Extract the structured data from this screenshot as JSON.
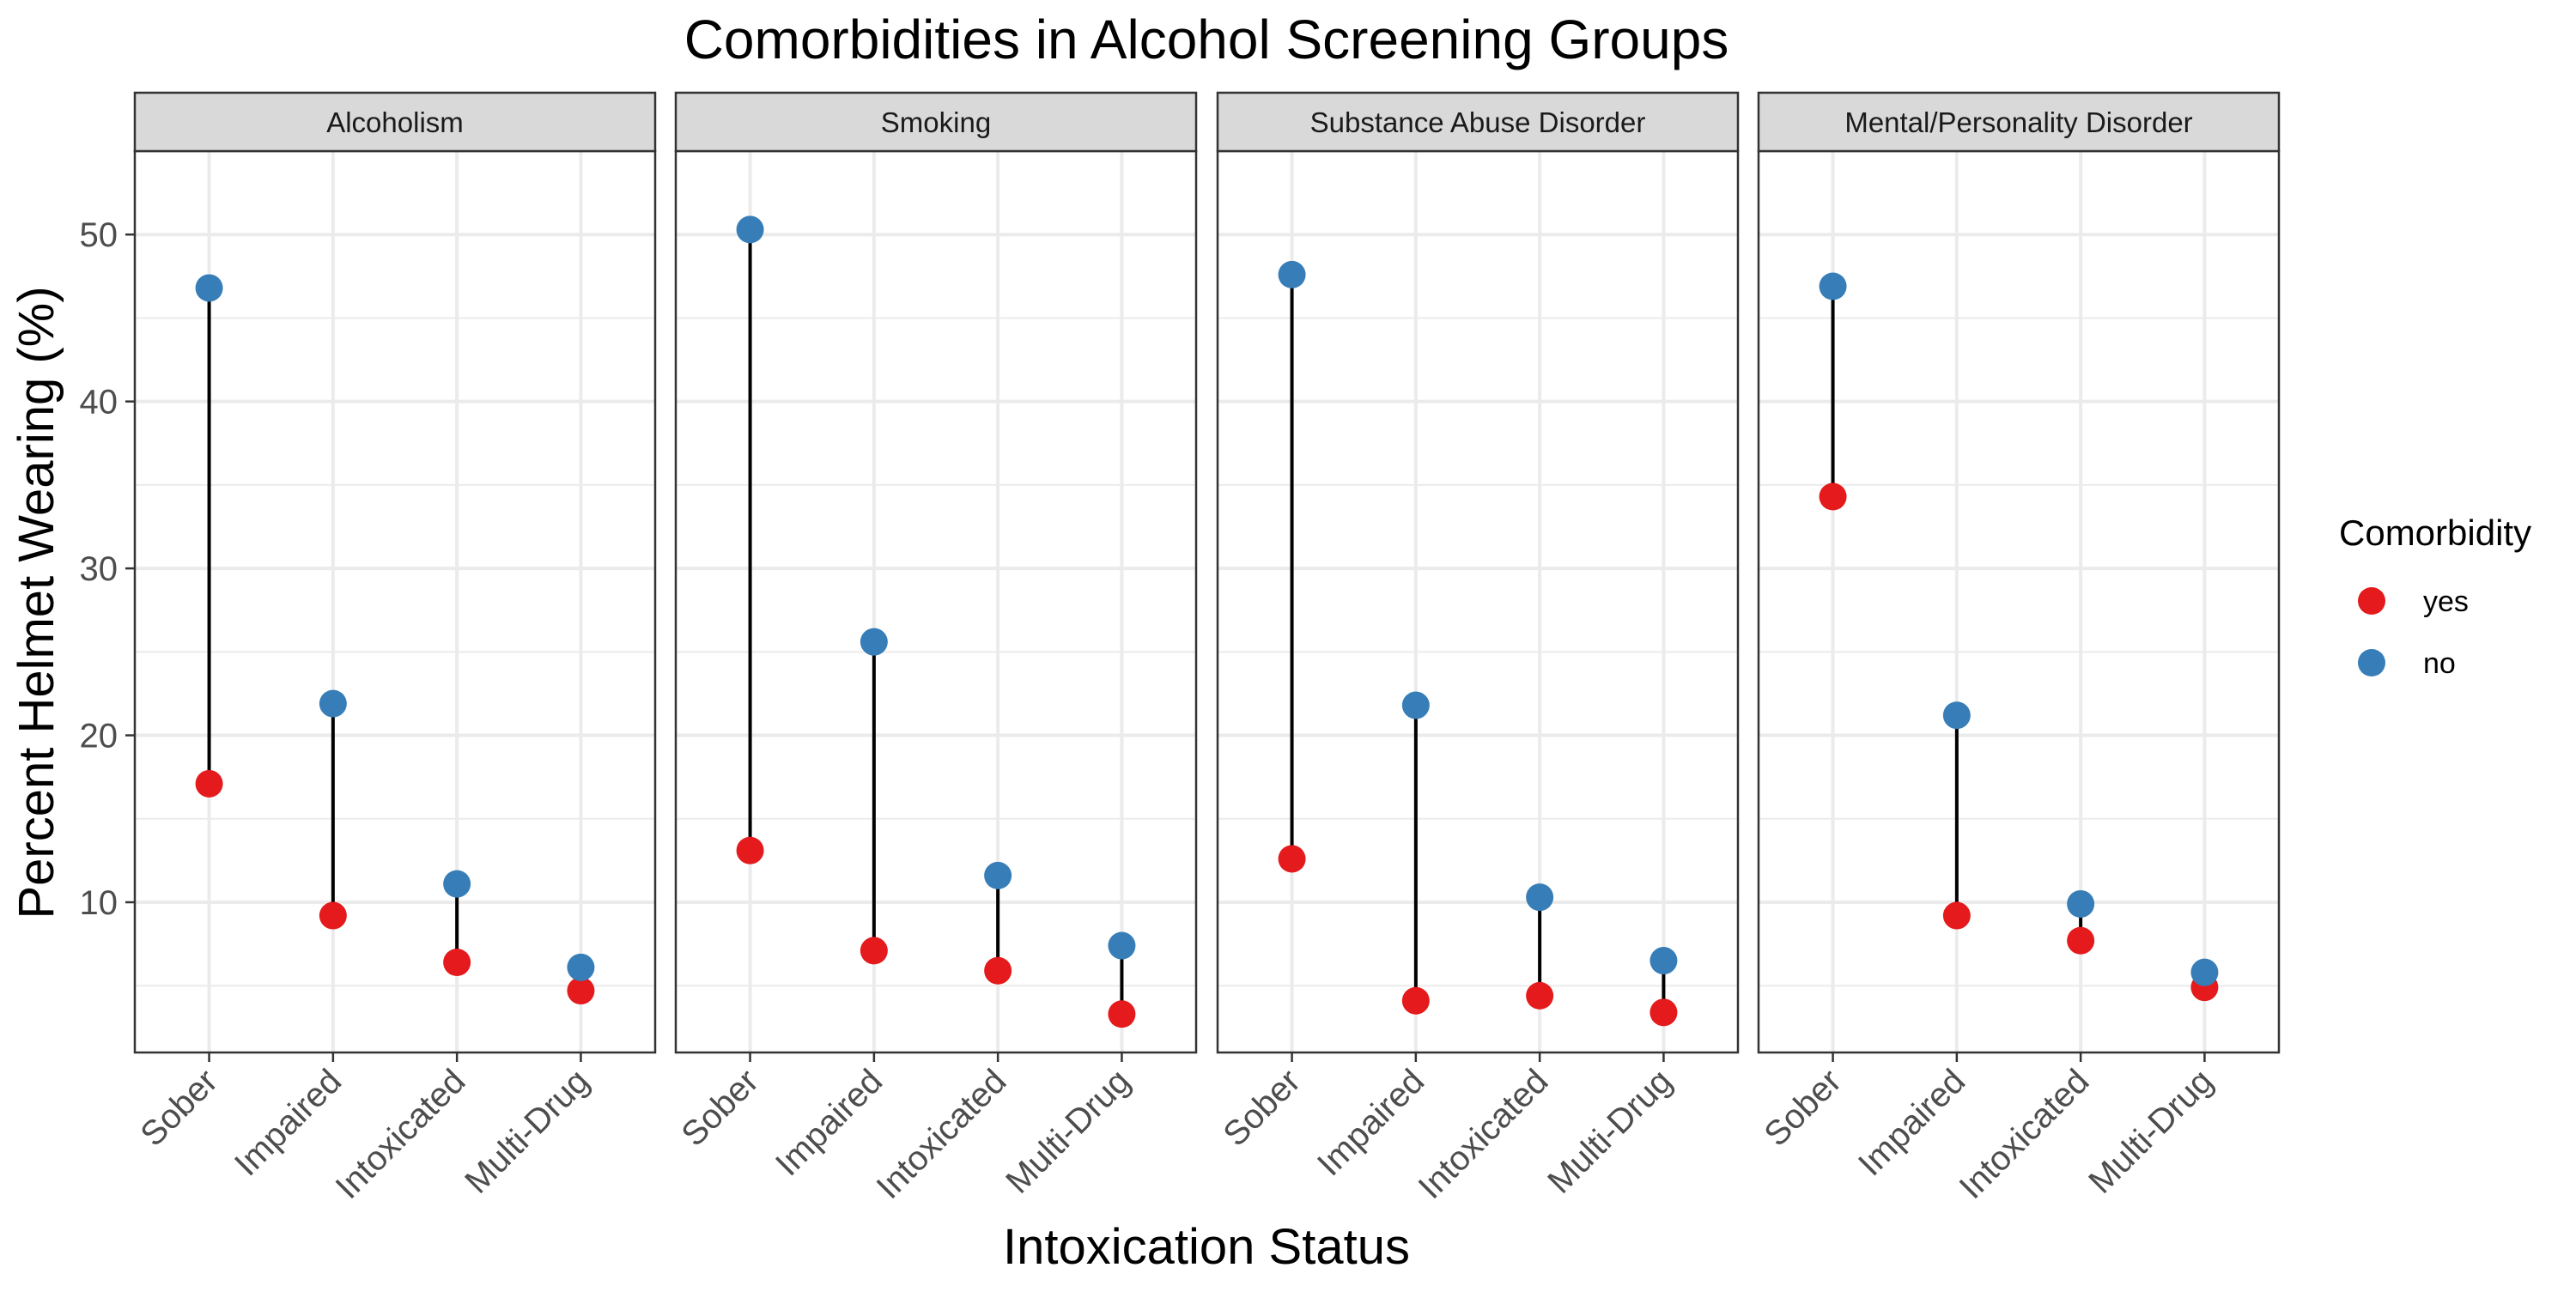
{
  "chart_data": {
    "type": "scatter",
    "subtype": "dumbbell-faceted",
    "title": "Comorbidities in Alcohol Screening Groups",
    "xlabel": "Intoxication Status",
    "ylabel": "Percent Helmet Wearing (%)",
    "categories": [
      "Sober",
      "Impaired",
      "Intoxicated",
      "Multi-Drug"
    ],
    "ylim": [
      1,
      55
    ],
    "yticks": [
      10,
      20,
      30,
      40,
      50
    ],
    "grid": true,
    "legend": {
      "title": "Comorbidity",
      "position": "right",
      "items": [
        {
          "label": "yes",
          "color": "#E41A1C"
        },
        {
          "label": "no",
          "color": "#377EB8"
        }
      ]
    },
    "colors": {
      "yes": "#E41A1C",
      "no": "#377EB8",
      "segment": "#000000",
      "strip_fill": "#D9D9D9",
      "grid": "#EBEBEB",
      "panel_border": "#333333"
    },
    "facets": [
      {
        "name": "Alcoholism",
        "series": [
          {
            "name": "yes",
            "values": [
              17.1,
              9.2,
              6.4,
              4.7
            ]
          },
          {
            "name": "no",
            "values": [
              46.8,
              21.9,
              11.1,
              6.1
            ]
          }
        ]
      },
      {
        "name": "Smoking",
        "series": [
          {
            "name": "yes",
            "values": [
              13.1,
              7.1,
              5.9,
              3.3
            ]
          },
          {
            "name": "no",
            "values": [
              50.3,
              25.6,
              11.6,
              7.4
            ]
          }
        ]
      },
      {
        "name": "Substance Abuse Disorder",
        "series": [
          {
            "name": "yes",
            "values": [
              12.6,
              4.1,
              4.4,
              3.4
            ]
          },
          {
            "name": "no",
            "values": [
              47.6,
              21.8,
              10.3,
              6.5
            ]
          }
        ]
      },
      {
        "name": "Mental/Personality Disorder",
        "series": [
          {
            "name": "yes",
            "values": [
              34.3,
              9.2,
              7.7,
              4.9
            ]
          },
          {
            "name": "no",
            "values": [
              46.9,
              21.2,
              9.9,
              5.8
            ]
          }
        ]
      }
    ]
  }
}
